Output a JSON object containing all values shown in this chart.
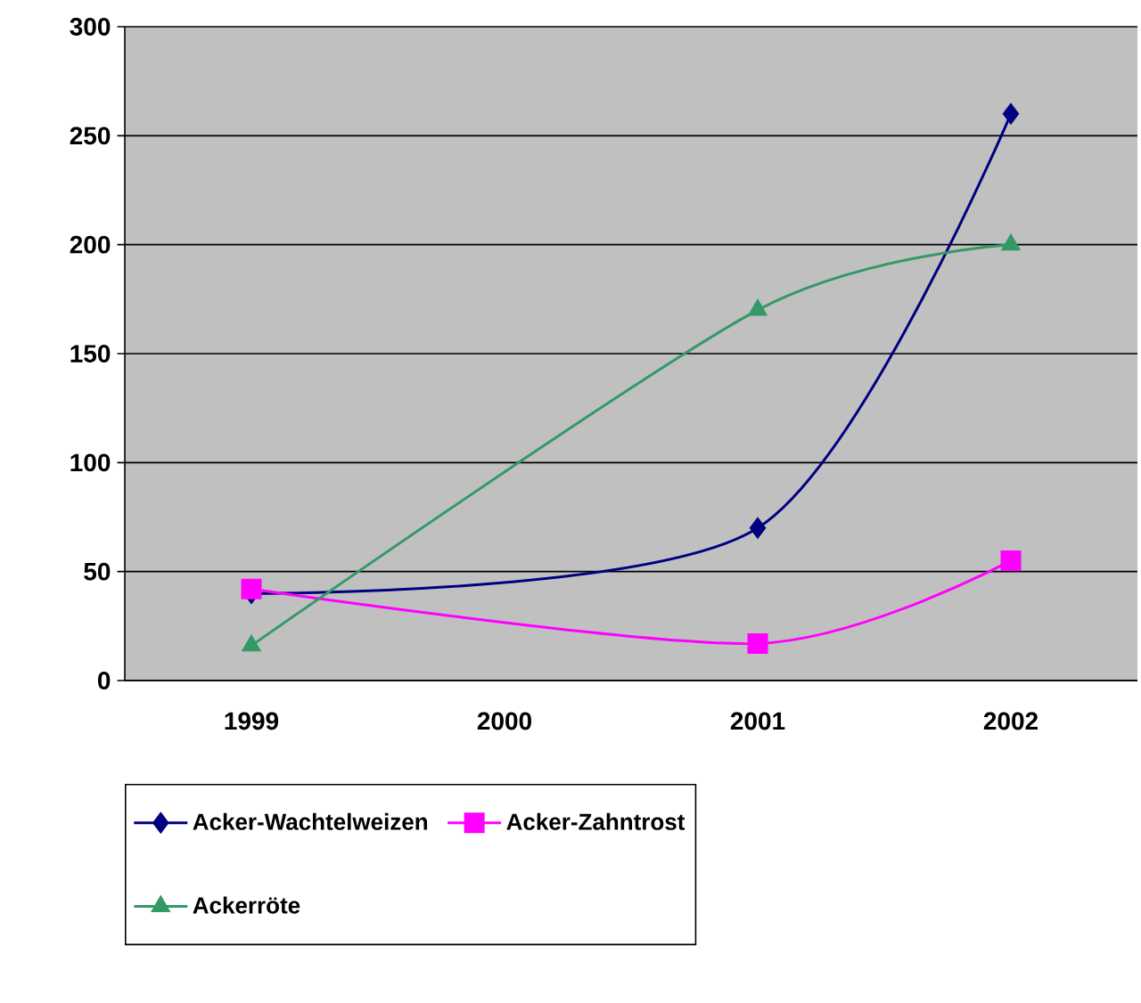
{
  "chart_data": {
    "type": "line",
    "categories": [
      "1999",
      "2000",
      "2001",
      "2002"
    ],
    "series": [
      {
        "name": "Acker-Wachtelweizen",
        "color": "#000080",
        "marker": "diamond",
        "values": [
          40,
          null,
          70,
          260
        ]
      },
      {
        "name": "Acker-Zahntrost",
        "color": "#ff00ff",
        "marker": "square",
        "values": [
          42,
          null,
          17,
          55
        ]
      },
      {
        "name": "Ackerröte",
        "color": "#339966",
        "marker": "triangle",
        "values": [
          16,
          null,
          170,
          200
        ]
      }
    ],
    "ylim": [
      0,
      300
    ],
    "yticks": [
      0,
      50,
      100,
      150,
      200,
      250,
      300
    ],
    "grid": "y",
    "legend": "bottom"
  }
}
